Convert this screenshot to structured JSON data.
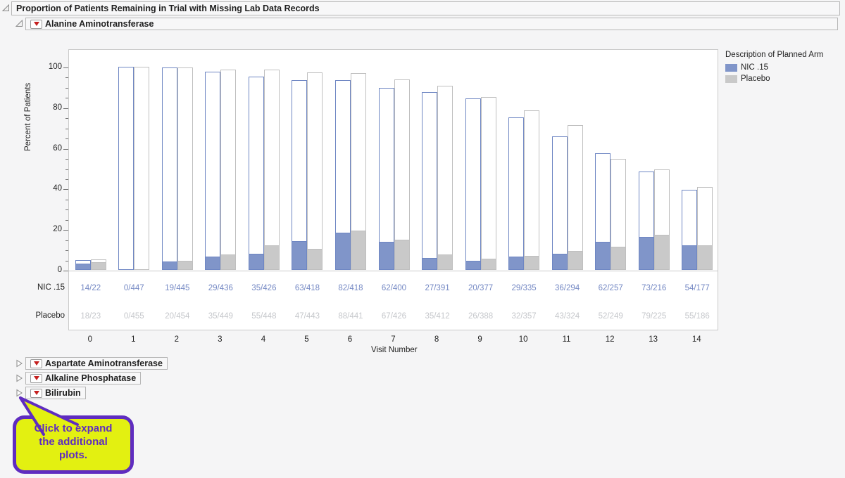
{
  "report": {
    "title": "Proportion of Patients Remaining in Trial with Missing Lab Data Records"
  },
  "sections": {
    "expanded_label": "Alanine Aminotransferase",
    "collapsed": [
      "Aspartate Aminotransferase",
      "Alkaline Phosphatase",
      "Bilirubin"
    ]
  },
  "chart_data": {
    "type": "bar",
    "title": "Proportion of Patients Remaining in Trial with Missing Lab Data Records",
    "subtitle": "Alanine Aminotransferase",
    "x": [
      0,
      1,
      2,
      3,
      4,
      5,
      6,
      7,
      8,
      9,
      10,
      11,
      12,
      13,
      14
    ],
    "xlabel": "Visit Number",
    "ylabel": "Percent of Patients",
    "ylim": [
      0,
      100
    ],
    "yticks": [
      0,
      20,
      40,
      60,
      80,
      100
    ],
    "grid": false,
    "legend_title": "Description of Planned Arm",
    "legend_position": "right",
    "bar_style": "paired per visit; outlined bar = percent of patients remaining, filled bar = percent with missing lab records; labels show missing/remaining",
    "series": [
      {
        "name": "NIC .15",
        "color": "#8095c9",
        "stroke": "#6e86c3",
        "text_color": "#7589c4",
        "total": 447,
        "missing": [
          14,
          0,
          19,
          29,
          35,
          63,
          82,
          62,
          27,
          20,
          29,
          36,
          62,
          73,
          54
        ],
        "remaining": [
          22,
          447,
          445,
          436,
          426,
          418,
          418,
          400,
          391,
          377,
          335,
          294,
          257,
          216,
          177
        ],
        "labels": [
          "14/22",
          "0/447",
          "19/445",
          "29/436",
          "35/426",
          "63/418",
          "82/418",
          "62/400",
          "27/391",
          "20/377",
          "29/335",
          "36/294",
          "62/257",
          "73/216",
          "54/177"
        ]
      },
      {
        "name": "Placebo",
        "color": "#c9c9c9",
        "stroke": "#bfbfbf",
        "text_color": "#c5c7cb",
        "total": 455,
        "missing": [
          18,
          0,
          20,
          35,
          55,
          47,
          88,
          67,
          35,
          26,
          32,
          43,
          52,
          79,
          55
        ],
        "remaining": [
          23,
          455,
          454,
          449,
          448,
          443,
          441,
          426,
          412,
          388,
          357,
          324,
          249,
          225,
          186
        ],
        "labels": [
          "18/23",
          "0/455",
          "20/454",
          "35/449",
          "55/448",
          "47/443",
          "88/441",
          "67/426",
          "35/412",
          "26/388",
          "32/357",
          "43/324",
          "52/249",
          "79/225",
          "55/186"
        ]
      }
    ]
  },
  "callout": {
    "text": "Click to expand\nthe additional\nplots.",
    "fill_color": "#e3f011",
    "border_color": "#5f2cc0"
  }
}
